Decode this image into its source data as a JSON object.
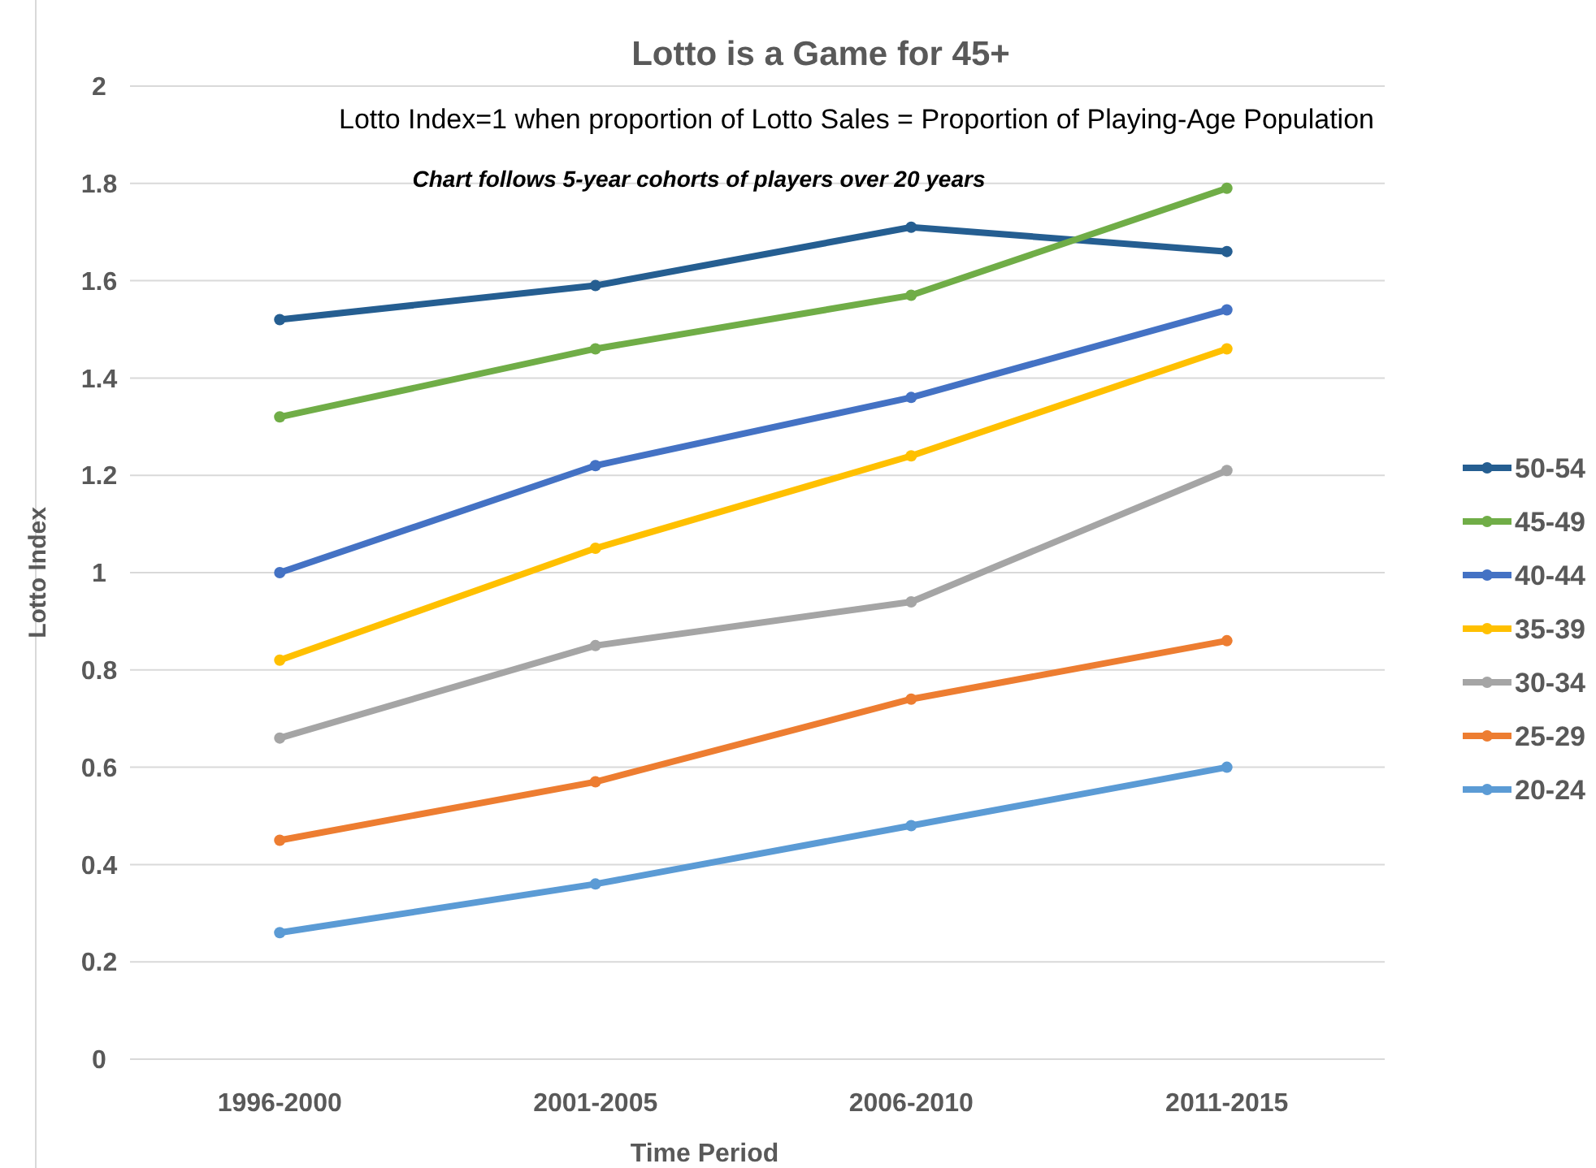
{
  "chart_data": {
    "type": "line",
    "title": "Lotto is a Game for 45+",
    "subtitle": "Lotto Index=1 when proportion of Lotto Sales = Proportion of Playing-Age Population",
    "annotations": [
      "Chart follows 5-year cohorts of players over 20 years"
    ],
    "xlabel": "Time Period",
    "ylabel": "Lotto Index",
    "categories": [
      "1996-2000",
      "2001-2005",
      "2006-2010",
      "2011-2015"
    ],
    "ylim": [
      0,
      2
    ],
    "yticks": [
      0,
      {
        "value": 0.2,
        "label": "0.2"
      },
      {
        "value": 0.4,
        "label": "0.4"
      },
      {
        "value": 0.6,
        "label": "0.6"
      },
      {
        "value": 0.8,
        "label": "0.8"
      },
      1,
      {
        "value": 1.2,
        "label": "1.2"
      },
      {
        "value": 1.4,
        "label": "1.4"
      },
      {
        "value": 1.6,
        "label": "1.6"
      },
      {
        "value": 1.8,
        "label": "1.8"
      },
      2
    ],
    "grid": "y",
    "legend": "right",
    "marker": "circle",
    "line_style": "solid",
    "series": [
      {
        "name": "50-54",
        "color": "#255e91",
        "values": [
          1.52,
          1.59,
          1.71,
          1.66
        ]
      },
      {
        "name": "45-49",
        "color": "#70ad47",
        "values": [
          1.32,
          1.46,
          1.57,
          1.79
        ]
      },
      {
        "name": "40-44",
        "color": "#4472c4",
        "values": [
          1.0,
          1.22,
          1.36,
          1.54
        ]
      },
      {
        "name": "35-39",
        "color": "#ffc000",
        "values": [
          0.82,
          1.05,
          1.24,
          1.46
        ]
      },
      {
        "name": "30-34",
        "color": "#a5a5a5",
        "values": [
          0.66,
          0.85,
          0.94,
          1.21
        ]
      },
      {
        "name": "25-29",
        "color": "#ed7d31",
        "values": [
          0.45,
          0.57,
          0.74,
          0.86
        ]
      },
      {
        "name": "20-24",
        "color": "#5b9bd5",
        "values": [
          0.26,
          0.36,
          0.48,
          0.6
        ]
      }
    ]
  }
}
